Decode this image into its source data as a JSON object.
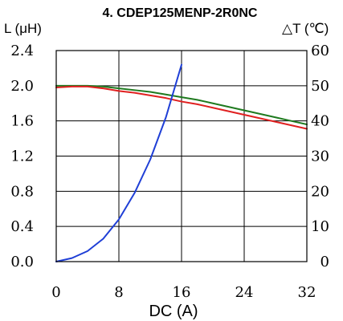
{
  "chart_data": {
    "type": "line",
    "title": "4. CDEP125MENP-2R0NC",
    "xlabel": "DC (A)",
    "ylabel_left": "L (μH)",
    "ylabel_right": "△T (℃)",
    "xlim": [
      0,
      32
    ],
    "ylim_left": [
      0,
      2.4
    ],
    "ylim_right": [
      0,
      60
    ],
    "x_ticks": [
      "0",
      "8",
      "16",
      "24",
      "32"
    ],
    "y_left_ticks": [
      "0.0",
      "0.4",
      "0.8",
      "1.2",
      "1.6",
      "2.0",
      "2.4"
    ],
    "y_right_ticks": [
      "0",
      "10",
      "20",
      "30",
      "40",
      "50",
      "60"
    ],
    "grid": true,
    "series": [
      {
        "axis": "left",
        "color": "#1f7a1f",
        "x": [
          0,
          2,
          4,
          6,
          8,
          10,
          12,
          14,
          16,
          18,
          20,
          22,
          24,
          26,
          28,
          30,
          32
        ],
        "y": [
          2.0,
          2.0,
          2.0,
          1.99,
          1.97,
          1.95,
          1.93,
          1.9,
          1.87,
          1.84,
          1.8,
          1.76,
          1.72,
          1.68,
          1.64,
          1.6,
          1.56
        ]
      },
      {
        "axis": "left",
        "color": "#e02020",
        "x": [
          0,
          2,
          4,
          6,
          8,
          10,
          12,
          14,
          16,
          18,
          20,
          22,
          24,
          26,
          28,
          30,
          32
        ],
        "y": [
          1.98,
          1.99,
          1.99,
          1.97,
          1.94,
          1.92,
          1.89,
          1.86,
          1.82,
          1.79,
          1.75,
          1.71,
          1.67,
          1.63,
          1.59,
          1.55,
          1.51
        ]
      },
      {
        "axis": "right",
        "color": "#1f3fd6",
        "x": [
          0,
          2,
          4,
          6,
          8,
          10,
          12,
          14,
          16
        ],
        "y": [
          0,
          1,
          3,
          6.5,
          12,
          19.5,
          29,
          41,
          56
        ]
      }
    ]
  }
}
